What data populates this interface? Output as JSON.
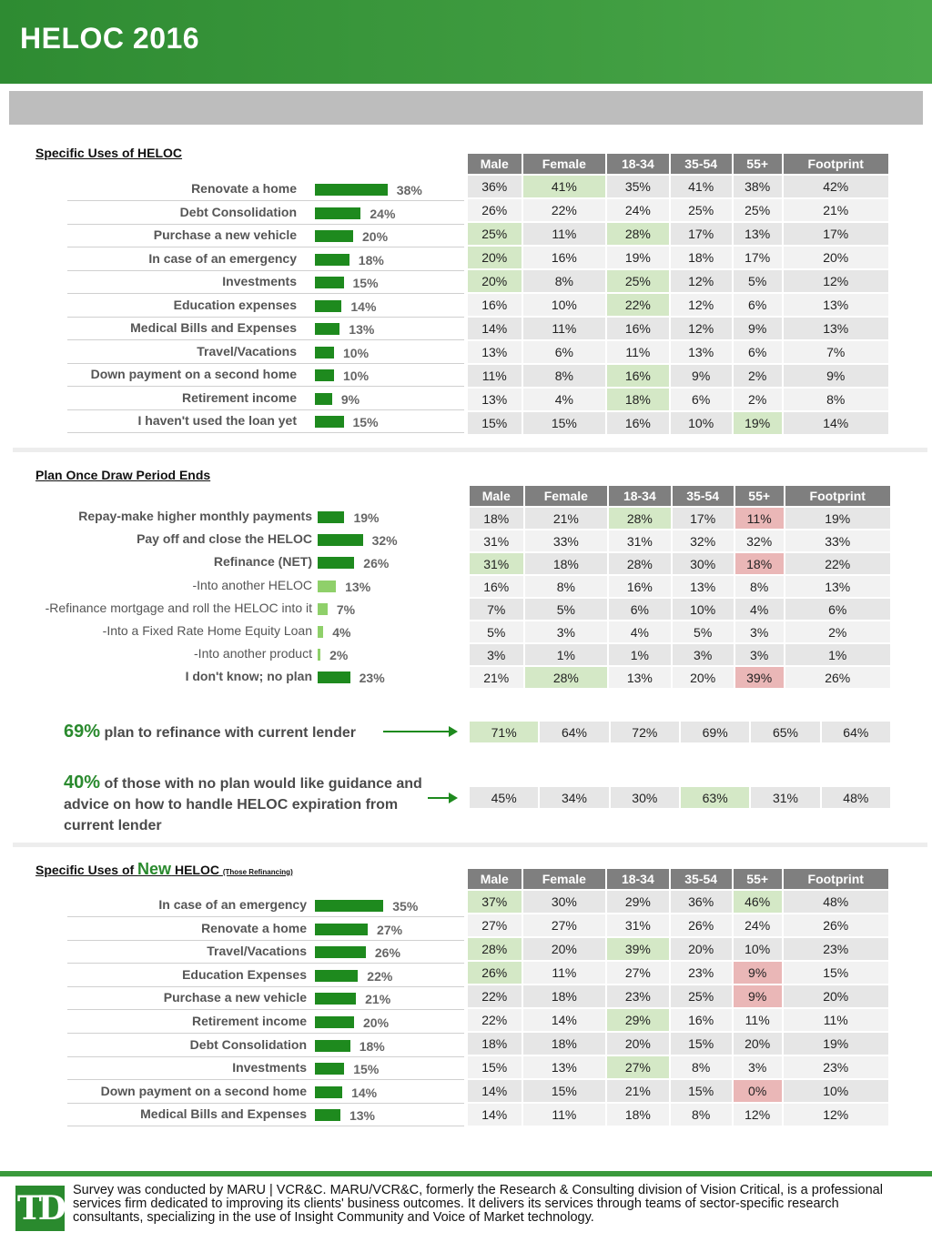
{
  "page_title": "HELOC 2016",
  "columns": [
    "Male",
    "Female",
    "18-34",
    "35-54",
    "55+",
    "Footprint"
  ],
  "colors": {
    "bar_dark": "#1e8a1e",
    "bar_light": "#8fd06a",
    "highlight_green": "#d4e8c6",
    "highlight_red": "#eab7b7",
    "brand": "#2a8a2e"
  },
  "section1": {
    "title": "Specific Uses of HELOC",
    "rows": [
      {
        "label": "Renovate a home",
        "value": "38%",
        "cells": [
          "36%",
          "41%",
          "35%",
          "41%",
          "38%",
          "42%"
        ],
        "flags": [
          "",
          "hi",
          "",
          "",
          "",
          ""
        ]
      },
      {
        "label": "Debt Consolidation",
        "value": "24%",
        "cells": [
          "26%",
          "22%",
          "24%",
          "25%",
          "25%",
          "21%"
        ],
        "flags": [
          "",
          "",
          "",
          "",
          "",
          ""
        ]
      },
      {
        "label": "Purchase a new vehicle",
        "value": "20%",
        "cells": [
          "25%",
          "11%",
          "28%",
          "17%",
          "13%",
          "17%"
        ],
        "flags": [
          "hi",
          "",
          "hi",
          "",
          "",
          ""
        ]
      },
      {
        "label": "In case of an emergency",
        "value": "18%",
        "cells": [
          "20%",
          "16%",
          "19%",
          "18%",
          "17%",
          "20%"
        ],
        "flags": [
          "hi",
          "",
          "",
          "",
          "",
          ""
        ]
      },
      {
        "label": "Investments",
        "value": "15%",
        "cells": [
          "20%",
          "8%",
          "25%",
          "12%",
          "5%",
          "12%"
        ],
        "flags": [
          "hi",
          "",
          "hi",
          "",
          "",
          ""
        ]
      },
      {
        "label": "Education expenses",
        "value": "14%",
        "cells": [
          "16%",
          "10%",
          "22%",
          "12%",
          "6%",
          "13%"
        ],
        "flags": [
          "",
          "",
          "hi",
          "",
          "",
          ""
        ]
      },
      {
        "label": "Medical Bills and Expenses",
        "value": "13%",
        "cells": [
          "14%",
          "11%",
          "16%",
          "12%",
          "9%",
          "13%"
        ],
        "flags": [
          "",
          "",
          "",
          "",
          "",
          ""
        ]
      },
      {
        "label": "Travel/Vacations",
        "value": "10%",
        "cells": [
          "13%",
          "6%",
          "11%",
          "13%",
          "6%",
          "7%"
        ],
        "flags": [
          "",
          "",
          "",
          "",
          "",
          ""
        ]
      },
      {
        "label": "Down payment on a second home",
        "value": "10%",
        "cells": [
          "11%",
          "8%",
          "16%",
          "9%",
          "2%",
          "9%"
        ],
        "flags": [
          "",
          "",
          "hi",
          "",
          "",
          ""
        ]
      },
      {
        "label": "Retirement income",
        "value": "9%",
        "cells": [
          "13%",
          "4%",
          "18%",
          "6%",
          "2%",
          "8%"
        ],
        "flags": [
          "",
          "",
          "hi",
          "",
          "",
          ""
        ]
      },
      {
        "label": "I haven't used the loan yet",
        "value": "15%",
        "cells": [
          "15%",
          "15%",
          "16%",
          "10%",
          "19%",
          "14%"
        ],
        "flags": [
          "",
          "",
          "",
          "",
          "hi",
          ""
        ]
      }
    ]
  },
  "section2": {
    "title": "Plan Once Draw Period Ends",
    "rows": [
      {
        "label": "Repay-make higher monthly payments",
        "value": "19%",
        "sub": false,
        "cells": [
          "18%",
          "21%",
          "28%",
          "17%",
          "11%",
          "19%"
        ],
        "flags": [
          "",
          "",
          "hi",
          "",
          "lo",
          ""
        ]
      },
      {
        "label": "Pay off and close the HELOC",
        "value": "32%",
        "sub": false,
        "cells": [
          "31%",
          "33%",
          "31%",
          "32%",
          "32%",
          "33%"
        ],
        "flags": [
          "",
          "",
          "",
          "",
          "",
          ""
        ]
      },
      {
        "label": "Refinance (NET)",
        "value": "26%",
        "sub": false,
        "cells": [
          "31%",
          "18%",
          "28%",
          "30%",
          "18%",
          "22%"
        ],
        "flags": [
          "hi",
          "",
          "",
          "",
          "lo",
          ""
        ]
      },
      {
        "label": "-Into another HELOC",
        "value": "13%",
        "sub": true,
        "cells": [
          "16%",
          "8%",
          "16%",
          "13%",
          "8%",
          "13%"
        ],
        "flags": [
          "",
          "",
          "",
          "",
          "",
          ""
        ]
      },
      {
        "label": "-Refinance mortgage and roll the HELOC into it",
        "value": "7%",
        "sub": true,
        "cells": [
          "7%",
          "5%",
          "6%",
          "10%",
          "4%",
          "6%"
        ],
        "flags": [
          "",
          "",
          "",
          "",
          "",
          ""
        ]
      },
      {
        "label": "-Into a Fixed Rate Home Equity Loan",
        "value": "4%",
        "sub": true,
        "cells": [
          "5%",
          "3%",
          "4%",
          "5%",
          "3%",
          "2%"
        ],
        "flags": [
          "",
          "",
          "",
          "",
          "",
          ""
        ]
      },
      {
        "label": "-Into another product",
        "value": "2%",
        "sub": true,
        "cells": [
          "3%",
          "1%",
          "1%",
          "3%",
          "3%",
          "1%"
        ],
        "flags": [
          "",
          "",
          "",
          "",
          "",
          ""
        ]
      },
      {
        "label": "I don't know; no plan",
        "value": "23%",
        "sub": false,
        "cells": [
          "21%",
          "28%",
          "13%",
          "20%",
          "39%",
          "26%"
        ],
        "flags": [
          "",
          "hi",
          "",
          "",
          "lo",
          ""
        ]
      }
    ],
    "callout1": {
      "big": "69%",
      "text": " plan to refinance with current lender",
      "cells": [
        "71%",
        "64%",
        "72%",
        "69%",
        "65%",
        "64%"
      ],
      "flags": [
        "hi",
        "",
        "",
        "",
        "",
        ""
      ]
    },
    "callout2": {
      "big": "40%",
      "text": " of those with no plan would like guidance and advice on how to handle HELOC expiration from current lender",
      "cells": [
        "45%",
        "34%",
        "30%",
        "63%",
        "31%",
        "48%"
      ],
      "flags": [
        "",
        "",
        "",
        "hi",
        "",
        ""
      ]
    }
  },
  "section3": {
    "title_pre": "Specific Uses of ",
    "title_new": "New",
    "title_post": " HELOC",
    "title_small": "(Those Refinancing)",
    "rows": [
      {
        "label": "In case of an emergency",
        "value": "35%",
        "cells": [
          "37%",
          "30%",
          "29%",
          "36%",
          "46%",
          "48%"
        ],
        "flags": [
          "hi",
          "",
          "",
          "",
          "hi",
          ""
        ]
      },
      {
        "label": "Renovate a home",
        "value": "27%",
        "cells": [
          "27%",
          "27%",
          "31%",
          "26%",
          "24%",
          "26%"
        ],
        "flags": [
          "",
          "",
          "",
          "",
          "",
          ""
        ]
      },
      {
        "label": "Travel/Vacations",
        "value": "26%",
        "cells": [
          "28%",
          "20%",
          "39%",
          "20%",
          "10%",
          "23%"
        ],
        "flags": [
          "hi",
          "",
          "hi",
          "",
          "",
          ""
        ]
      },
      {
        "label": "Education Expenses",
        "value": "22%",
        "cells": [
          "26%",
          "11%",
          "27%",
          "23%",
          "9%",
          "15%"
        ],
        "flags": [
          "hi",
          "",
          "",
          "",
          "lo",
          ""
        ]
      },
      {
        "label": "Purchase a new vehicle",
        "value": "21%",
        "cells": [
          "22%",
          "18%",
          "23%",
          "25%",
          "9%",
          "20%"
        ],
        "flags": [
          "",
          "",
          "",
          "",
          "lo",
          ""
        ]
      },
      {
        "label": "Retirement income",
        "value": "20%",
        "cells": [
          "22%",
          "14%",
          "29%",
          "16%",
          "11%",
          "11%"
        ],
        "flags": [
          "",
          "",
          "hi",
          "",
          "",
          ""
        ]
      },
      {
        "label": "Debt Consolidation",
        "value": "18%",
        "cells": [
          "18%",
          "18%",
          "20%",
          "15%",
          "20%",
          "19%"
        ],
        "flags": [
          "",
          "",
          "",
          "",
          "",
          ""
        ]
      },
      {
        "label": "Investments",
        "value": "15%",
        "cells": [
          "15%",
          "13%",
          "27%",
          "8%",
          "3%",
          "23%"
        ],
        "flags": [
          "",
          "",
          "hi",
          "",
          "",
          ""
        ]
      },
      {
        "label": "Down payment on a second home",
        "value": "14%",
        "cells": [
          "14%",
          "15%",
          "21%",
          "15%",
          "0%",
          "10%"
        ],
        "flags": [
          "",
          "",
          "",
          "",
          "lo",
          ""
        ]
      },
      {
        "label": "Medical Bills and Expenses",
        "value": "13%",
        "cells": [
          "14%",
          "11%",
          "18%",
          "8%",
          "12%",
          "12%"
        ],
        "flags": [
          "",
          "",
          "",
          "",
          "",
          ""
        ]
      }
    ]
  },
  "footer": {
    "logo": "TD",
    "text": "Survey was conducted by MARU | VCR&C. MARU/VCR&C, formerly the Research & Consulting division of Vision Critical, is a professional services firm dedicated to improving its clients' business outcomes. It delivers its services through teams of sector-specific research consultants, specializing in the use of Insight Community and Voice of Market technology."
  },
  "chart_data": [
    {
      "type": "bar",
      "title": "Specific Uses of HELOC",
      "categories": [
        "Renovate a home",
        "Debt Consolidation",
        "Purchase a new vehicle",
        "In case of an emergency",
        "Investments",
        "Education expenses",
        "Medical Bills and Expenses",
        "Travel/Vacations",
        "Down payment on a second home",
        "Retirement income",
        "I haven't used the loan yet"
      ],
      "values": [
        38,
        24,
        20,
        18,
        15,
        14,
        13,
        10,
        10,
        9,
        15
      ],
      "orientation": "horizontal"
    },
    {
      "type": "bar",
      "title": "Plan Once Draw Period Ends",
      "categories": [
        "Repay-make higher monthly payments",
        "Pay off and close the HELOC",
        "Refinance (NET)",
        "-Into another HELOC",
        "-Refinance mortgage and roll the HELOC into it",
        "-Into a Fixed Rate Home Equity Loan",
        "-Into another product",
        "I don't know; no plan"
      ],
      "values": [
        19,
        32,
        26,
        13,
        7,
        4,
        2,
        23
      ],
      "orientation": "horizontal"
    },
    {
      "type": "bar",
      "title": "Specific Uses of New HELOC (Those Refinancing)",
      "categories": [
        "In case of an emergency",
        "Renovate a home",
        "Travel/Vacations",
        "Education Expenses",
        "Purchase a new vehicle",
        "Retirement income",
        "Debt Consolidation",
        "Investments",
        "Down payment on a second home",
        "Medical Bills and Expenses"
      ],
      "values": [
        35,
        27,
        26,
        22,
        21,
        20,
        18,
        15,
        14,
        13
      ],
      "orientation": "horizontal"
    }
  ]
}
